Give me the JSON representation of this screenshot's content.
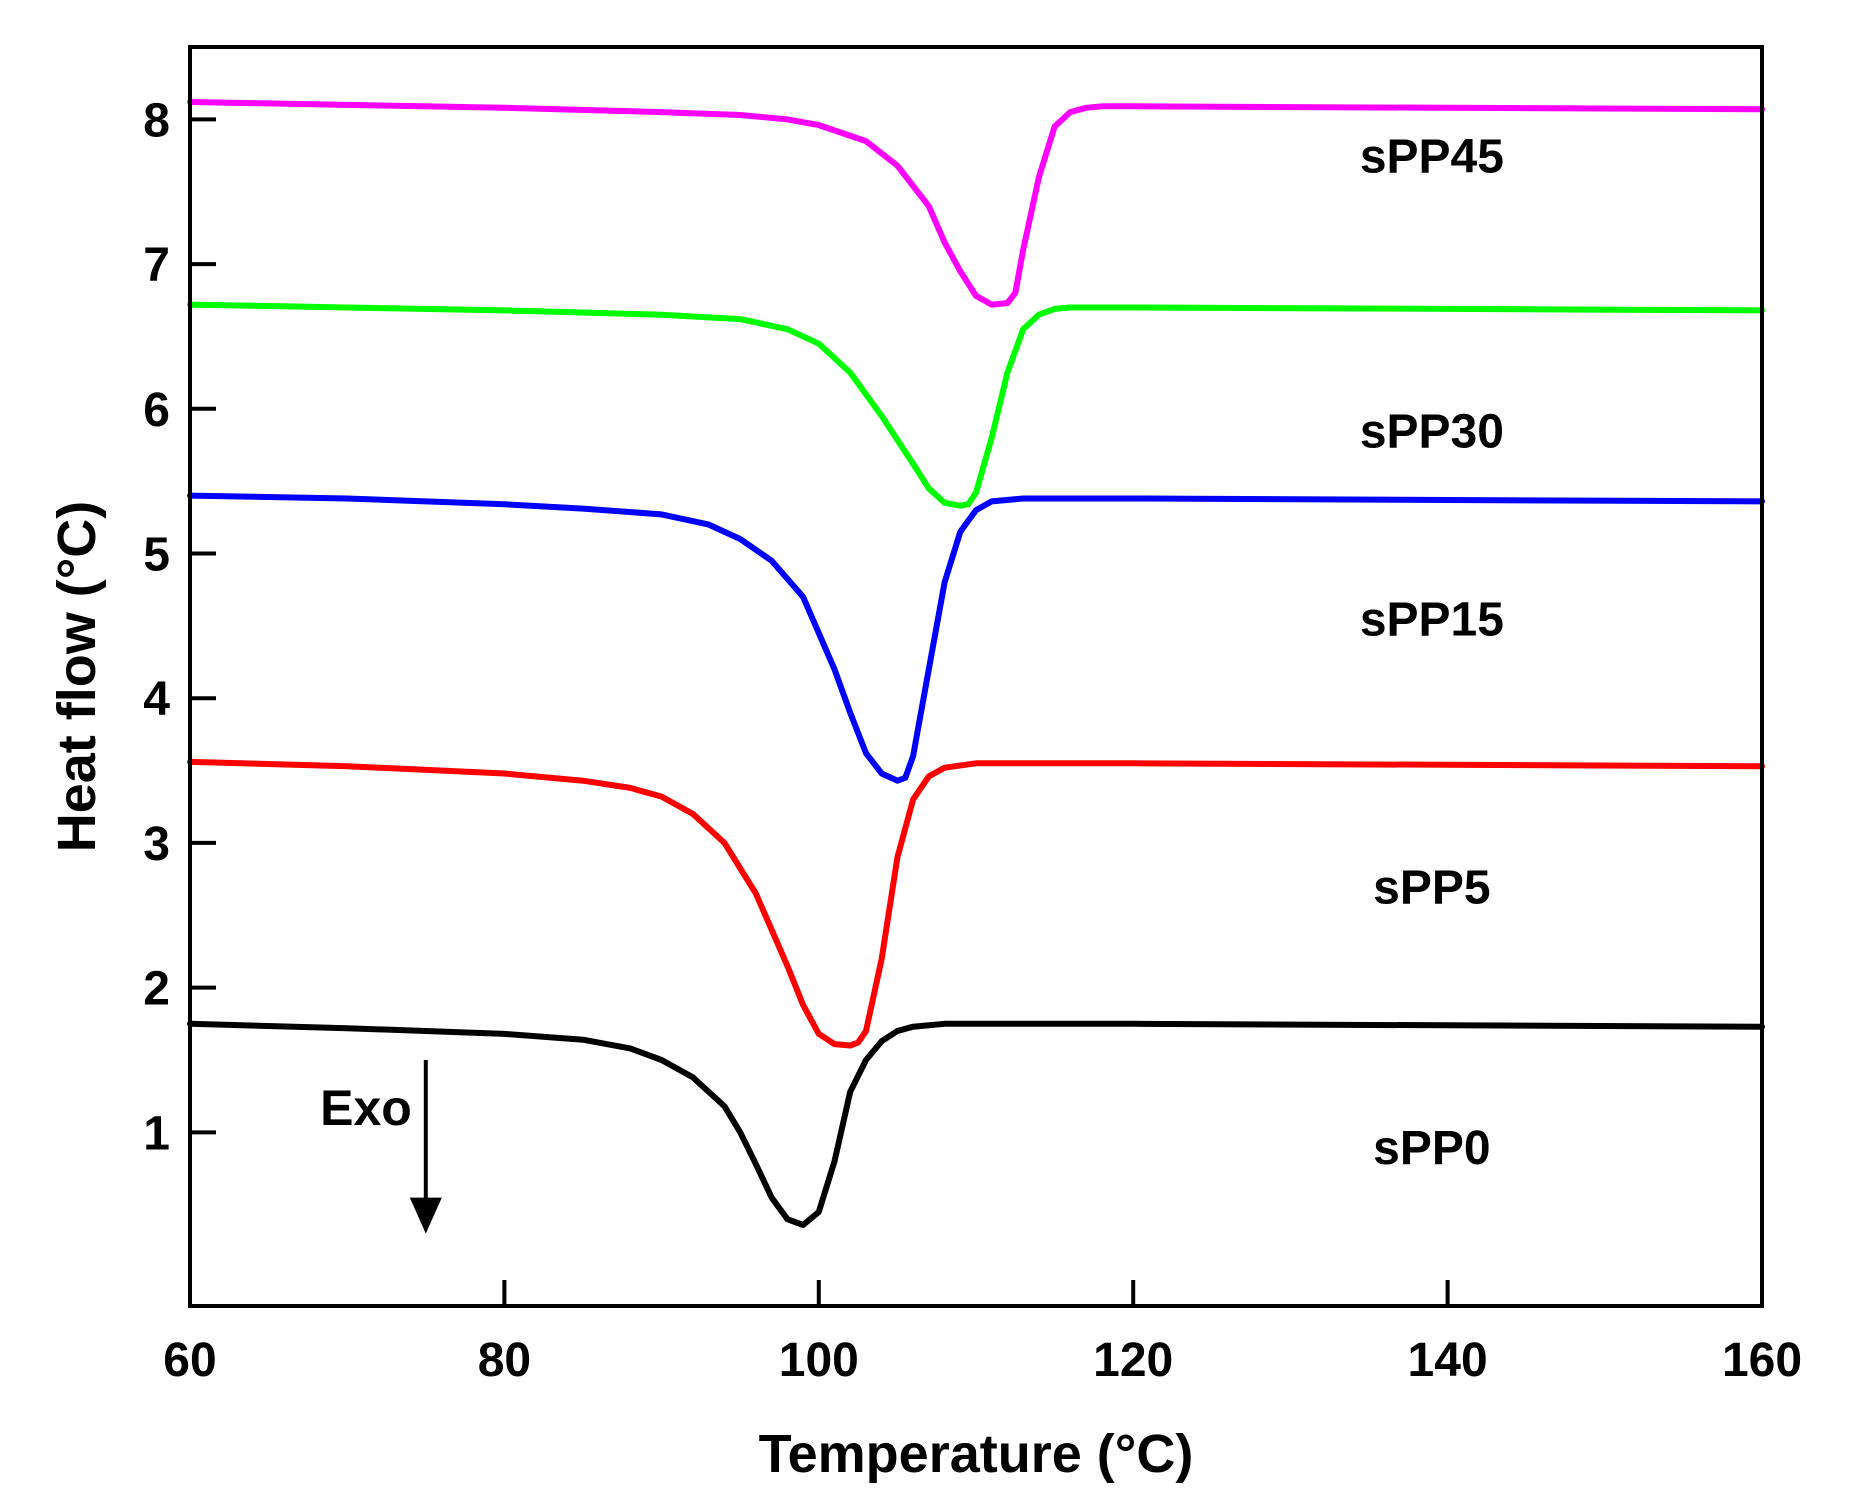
{
  "chart_data": {
    "type": "line",
    "title": "",
    "xlabel": "Temperature (°C)",
    "ylabel": "Heat flow (°C)",
    "xlim": [
      60,
      160
    ],
    "ylim": [
      -0.2,
      8.5
    ],
    "xticks": [
      60,
      80,
      100,
      120,
      140,
      160
    ],
    "yticks": [
      1,
      2,
      3,
      4,
      5,
      6,
      7,
      8
    ],
    "annotation": {
      "text": "Exo",
      "arrow_x": 75,
      "arrow_from_y": 1.5,
      "arrow_to_y": 0.3,
      "direction": "down"
    },
    "series": [
      {
        "name": "sPP0",
        "color": "#000000",
        "label_at": [
          139,
          0.9
        ],
        "x": [
          60,
          70,
          80,
          85,
          88,
          90,
          92,
          94,
          95,
          96,
          97,
          98,
          99,
          100,
          101,
          102,
          103,
          104,
          105,
          106,
          107,
          108,
          110,
          120,
          140,
          160
        ],
        "y": [
          1.75,
          1.72,
          1.68,
          1.64,
          1.58,
          1.5,
          1.38,
          1.18,
          1.0,
          0.78,
          0.55,
          0.4,
          0.36,
          0.45,
          0.8,
          1.28,
          1.5,
          1.63,
          1.7,
          1.73,
          1.74,
          1.75,
          1.75,
          1.75,
          1.74,
          1.73
        ]
      },
      {
        "name": "sPP5",
        "color": "#ff0000",
        "label_at": [
          139,
          2.7
        ],
        "x": [
          60,
          70,
          80,
          85,
          88,
          90,
          92,
          94,
          96,
          97,
          98,
          99,
          100,
          101,
          102,
          102.5,
          103,
          104,
          105,
          106,
          107,
          108,
          110,
          120,
          140,
          160
        ],
        "y": [
          3.56,
          3.53,
          3.48,
          3.43,
          3.38,
          3.32,
          3.2,
          3.0,
          2.65,
          2.4,
          2.15,
          1.88,
          1.68,
          1.61,
          1.6,
          1.62,
          1.7,
          2.2,
          2.9,
          3.3,
          3.46,
          3.52,
          3.55,
          3.55,
          3.54,
          3.53
        ]
      },
      {
        "name": "sPP15",
        "color": "#0000ff",
        "label_at": [
          139,
          4.55
        ],
        "x": [
          60,
          70,
          80,
          85,
          90,
          93,
          95,
          97,
          99,
          100,
          101,
          102,
          103,
          104,
          105,
          105.5,
          106,
          107,
          108,
          109,
          110,
          111,
          113,
          120,
          140,
          160
        ],
        "y": [
          5.4,
          5.38,
          5.34,
          5.31,
          5.27,
          5.2,
          5.1,
          4.95,
          4.7,
          4.45,
          4.2,
          3.9,
          3.62,
          3.48,
          3.43,
          3.45,
          3.6,
          4.2,
          4.8,
          5.15,
          5.3,
          5.36,
          5.38,
          5.38,
          5.37,
          5.36
        ]
      },
      {
        "name": "sPP30",
        "color": "#00ff00",
        "label_at": [
          139,
          5.85
        ],
        "x": [
          60,
          70,
          80,
          90,
          95,
          98,
          100,
          102,
          104,
          106,
          107,
          108,
          109,
          109.5,
          110,
          111,
          112,
          113,
          114,
          115,
          116,
          118,
          120,
          140,
          160
        ],
        "y": [
          6.72,
          6.7,
          6.68,
          6.65,
          6.62,
          6.55,
          6.45,
          6.25,
          5.95,
          5.62,
          5.45,
          5.35,
          5.33,
          5.34,
          5.42,
          5.8,
          6.25,
          6.55,
          6.65,
          6.69,
          6.7,
          6.7,
          6.7,
          6.69,
          6.68
        ]
      },
      {
        "name": "sPP45",
        "color": "#ff00ff",
        "label_at": [
          139,
          7.75
        ],
        "x": [
          60,
          70,
          80,
          90,
          95,
          98,
          100,
          103,
          105,
          107,
          108,
          109,
          110,
          111,
          112,
          112.5,
          113,
          114,
          115,
          116,
          117,
          118,
          120,
          140,
          160
        ],
        "y": [
          8.12,
          8.1,
          8.08,
          8.05,
          8.03,
          8.0,
          7.96,
          7.85,
          7.68,
          7.4,
          7.15,
          6.95,
          6.78,
          6.72,
          6.73,
          6.8,
          7.1,
          7.6,
          7.95,
          8.05,
          8.08,
          8.09,
          8.09,
          8.08,
          8.07
        ]
      }
    ]
  }
}
